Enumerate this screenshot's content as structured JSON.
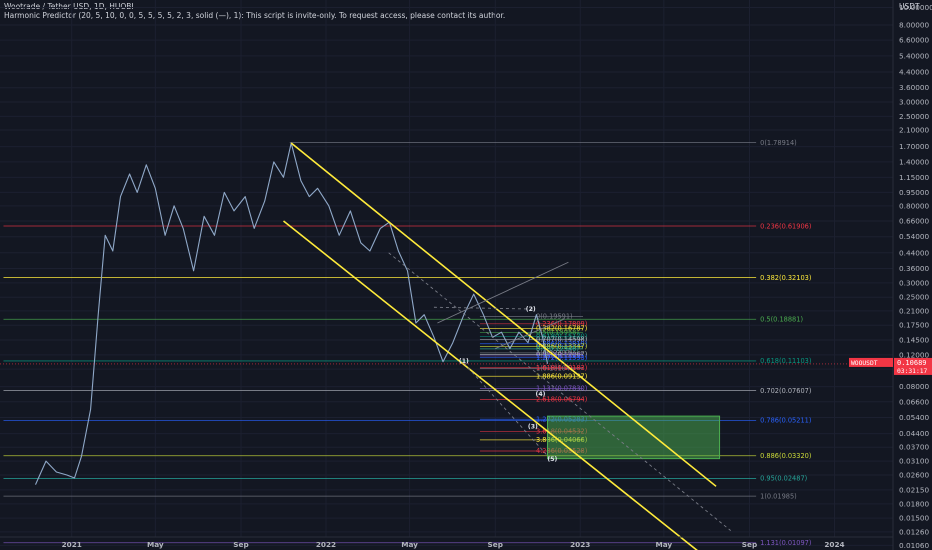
{
  "header": {
    "title": "Wootrade / Tether USD, 1D, HUOBI",
    "indicator": "Harmonic Predictor (20, 5, 10, 0, 0, 5, 5, 5, 5, 2, 3, solid (—), 1): This script is invite-only. To request access, please contact its author."
  },
  "chart_data": {
    "type": "line",
    "symbol": "WOOUSDT",
    "y_unit": "USDT",
    "y_scale": "log",
    "ylim": [
      0.01,
      11.0
    ],
    "y_ticks": [
      "10.00000",
      "8.00000",
      "6.60000",
      "5.40000",
      "4.40000",
      "3.60000",
      "3.00000",
      "2.50000",
      "2.10000",
      "1.70000",
      "1.40000",
      "1.15000",
      "0.95000",
      "0.80000",
      "0.66000",
      "0.54000",
      "0.44000",
      "0.36000",
      "0.30000",
      "0.25000",
      "0.21000",
      "0.17500",
      "0.14500",
      "0.12000",
      "0.10000",
      "0.08000",
      "0.06600",
      "0.05400",
      "0.04400",
      "0.03700",
      "0.03100",
      "0.02600",
      "0.02150",
      "0.01800",
      "0.01500",
      "0.01260",
      "0.01060"
    ],
    "y_tick_values": [
      10.0,
      8.0,
      6.6,
      5.4,
      4.4,
      3.6,
      3.0,
      2.5,
      2.1,
      1.7,
      1.4,
      1.15,
      0.95,
      0.8,
      0.66,
      0.54,
      0.44,
      0.36,
      0.3,
      0.25,
      0.21,
      0.175,
      0.145,
      0.12,
      0.1,
      0.08,
      0.066,
      0.054,
      0.044,
      0.037,
      0.031,
      0.026,
      0.0215,
      0.018,
      0.015,
      0.0126,
      0.0106
    ],
    "x_ticks": [
      "2021",
      "May",
      "Sep",
      "2022",
      "May",
      "Sep",
      "2023",
      "May",
      "Sep",
      "2024"
    ],
    "x_tick_dates": [
      "2021-01-01",
      "2021-05-01",
      "2021-09-01",
      "2022-01-01",
      "2022-05-01",
      "2022-09-01",
      "2023-01-01",
      "2023-05-01",
      "2023-09-01",
      "2024-01-01"
    ],
    "xlim": [
      "2020-09-20",
      "2024-03-25"
    ],
    "current_price": {
      "label": "WOOUSDT",
      "value": "0.10689",
      "countdown": "03:31:17"
    },
    "price_path": [
      {
        "date": "2020-11-10",
        "value": 0.023
      },
      {
        "date": "2020-11-25",
        "value": 0.031
      },
      {
        "date": "2020-12-10",
        "value": 0.027
      },
      {
        "date": "2020-12-25",
        "value": 0.026
      },
      {
        "date": "2021-01-05",
        "value": 0.025
      },
      {
        "date": "2021-01-15",
        "value": 0.033
      },
      {
        "date": "2021-01-28",
        "value": 0.06
      },
      {
        "date": "2021-02-08",
        "value": 0.2
      },
      {
        "date": "2021-02-18",
        "value": 0.55
      },
      {
        "date": "2021-03-01",
        "value": 0.45
      },
      {
        "date": "2021-03-12",
        "value": 0.9
      },
      {
        "date": "2021-03-25",
        "value": 1.2
      },
      {
        "date": "2021-04-05",
        "value": 0.95
      },
      {
        "date": "2021-04-18",
        "value": 1.35
      },
      {
        "date": "2021-05-01",
        "value": 1.0
      },
      {
        "date": "2021-05-15",
        "value": 0.55
      },
      {
        "date": "2021-05-28",
        "value": 0.8
      },
      {
        "date": "2021-06-10",
        "value": 0.6
      },
      {
        "date": "2021-06-25",
        "value": 0.35
      },
      {
        "date": "2021-07-10",
        "value": 0.7
      },
      {
        "date": "2021-07-25",
        "value": 0.55
      },
      {
        "date": "2021-08-08",
        "value": 0.95
      },
      {
        "date": "2021-08-22",
        "value": 0.75
      },
      {
        "date": "2021-09-07",
        "value": 0.9
      },
      {
        "date": "2021-09-20",
        "value": 0.6
      },
      {
        "date": "2021-10-05",
        "value": 0.85
      },
      {
        "date": "2021-10-18",
        "value": 1.4
      },
      {
        "date": "2021-11-01",
        "value": 1.15
      },
      {
        "date": "2021-11-12",
        "value": 1.78
      },
      {
        "date": "2021-11-26",
        "value": 1.1
      },
      {
        "date": "2021-12-08",
        "value": 0.9
      },
      {
        "date": "2021-12-20",
        "value": 1.0
      },
      {
        "date": "2022-01-05",
        "value": 0.8
      },
      {
        "date": "2022-01-20",
        "value": 0.55
      },
      {
        "date": "2022-02-05",
        "value": 0.75
      },
      {
        "date": "2022-02-20",
        "value": 0.5
      },
      {
        "date": "2022-03-05",
        "value": 0.45
      },
      {
        "date": "2022-03-20",
        "value": 0.6
      },
      {
        "date": "2022-04-02",
        "value": 0.65
      },
      {
        "date": "2022-04-15",
        "value": 0.45
      },
      {
        "date": "2022-04-28",
        "value": 0.35
      },
      {
        "date": "2022-05-10",
        "value": 0.18
      },
      {
        "date": "2022-05-22",
        "value": 0.2
      },
      {
        "date": "2022-06-05",
        "value": 0.15
      },
      {
        "date": "2022-06-18",
        "value": 0.11
      },
      {
        "date": "2022-07-02",
        "value": 0.14
      },
      {
        "date": "2022-07-18",
        "value": 0.2
      },
      {
        "date": "2022-08-01",
        "value": 0.26
      },
      {
        "date": "2022-08-15",
        "value": 0.2
      },
      {
        "date": "2022-08-28",
        "value": 0.15
      },
      {
        "date": "2022-09-10",
        "value": 0.16
      },
      {
        "date": "2022-09-22",
        "value": 0.13
      },
      {
        "date": "2022-10-05",
        "value": 0.16
      },
      {
        "date": "2022-10-18",
        "value": 0.14
      },
      {
        "date": "2022-10-30",
        "value": 0.2
      },
      {
        "date": "2022-11-08",
        "value": 0.15
      },
      {
        "date": "2022-11-15",
        "value": 0.107
      }
    ],
    "fib_levels": [
      {
        "label": "0(1.78914)",
        "value": 1.78914,
        "color": "#787b86",
        "start": "2021-11-10",
        "end": "2023-12-20"
      },
      {
        "label": "0.236(0.61906)",
        "value": 0.61906,
        "color": "#f23645",
        "start": "2020-09-25",
        "end": "2023-12-20"
      },
      {
        "label": "0.382(0.32103)",
        "value": 0.32103,
        "color": "#ffeb3b",
        "start": "2020-09-25",
        "end": "2023-12-20"
      },
      {
        "label": "0.5(0.18881)",
        "value": 0.18881,
        "color": "#4caf50",
        "start": "2020-09-25",
        "end": "2023-12-20"
      },
      {
        "label": "0.618(0.11103)",
        "value": 0.11103,
        "color": "#089981",
        "start": "2020-09-25",
        "end": "2023-12-20"
      },
      {
        "label": "0.702(0.07607)",
        "value": 0.07607,
        "color": "#b2b5be",
        "start": "2020-09-25",
        "end": "2023-12-20"
      },
      {
        "label": "0.786(0.05211)",
        "value": 0.05211,
        "color": "#2962ff",
        "start": "2020-09-25",
        "end": "2023-12-20"
      },
      {
        "label": "0.886(0.03320)",
        "value": 0.0332,
        "color": "#cddc39",
        "start": "2020-09-25",
        "end": "2023-12-20"
      },
      {
        "label": "0.95(0.02487)",
        "value": 0.02487,
        "color": "#26a69a",
        "start": "2020-09-25",
        "end": "2023-12-20"
      },
      {
        "label": "1(0.01985)",
        "value": 0.01985,
        "color": "#787b86",
        "start": "2020-09-25",
        "end": "2023-12-20"
      },
      {
        "label": "1.131(0.01097)",
        "value": 0.01097,
        "color": "#7e57c2",
        "start": "2020-09-25",
        "end": "2023-12-20"
      }
    ],
    "harmonic_levels": [
      {
        "label": "0(0.19591)",
        "value": 0.19591,
        "color": "#787b86"
      },
      {
        "label": "0.236(0.17809)",
        "value": 0.17809,
        "color": "#f23645"
      },
      {
        "label": "0.382(0.16787)",
        "value": 0.16787,
        "color": "#ffeb3b"
      },
      {
        "label": "0.5(0.15958)",
        "value": 0.15958,
        "color": "#4caf50"
      },
      {
        "label": "0.618(0.15170)",
        "value": 0.1517,
        "color": "#089981"
      },
      {
        "label": "0.707(0.14598)",
        "value": 0.14598,
        "color": "#b2b5be"
      },
      {
        "label": "0.786(0.13819)",
        "value": 0.13819,
        "color": "#2962ff"
      },
      {
        "label": "0.886(0.13347)",
        "value": 0.13347,
        "color": "#cddc39"
      },
      {
        "label": "0.9(0.12946)",
        "value": 0.12946,
        "color": "#26a69a"
      },
      {
        "label": "1(0.12307)",
        "value": 0.12307,
        "color": "#787b86"
      },
      {
        "label": "0.950(0.12067)",
        "value": 0.12067,
        "color": "#b2b5be"
      },
      {
        "label": "1.13(0.11837)",
        "value": 0.11837,
        "color": "#7e57c2"
      },
      {
        "label": "1.272(0.11593)",
        "value": 0.11593,
        "color": "#2962ff"
      },
      {
        "label": "1(0.10104)",
        "value": 0.10104,
        "color": "#787b86"
      },
      {
        "label": "1.618(0.10183)",
        "value": 0.10183,
        "color": "#f23645"
      },
      {
        "label": "1.886(0.09137)",
        "value": 0.09137,
        "color": "#ffeb3b"
      },
      {
        "label": "1.131(0.07830)",
        "value": 0.0783,
        "color": "#7e57c2"
      },
      {
        "label": "2.618(0.06794)",
        "value": 0.06794,
        "color": "#f23645"
      },
      {
        "label": "1.272(0.05283)",
        "value": 0.05283,
        "color": "#2962ff"
      },
      {
        "label": "3.618(0.04532)",
        "value": 0.04532,
        "color": "#f23645"
      },
      {
        "label": "3.886(0.04066)",
        "value": 0.04066,
        "color": "#ffeb3b"
      },
      {
        "label": "4.236(0.03528)",
        "value": 0.03528,
        "color": "#f23645"
      }
    ],
    "point_labels": [
      {
        "label": "(2)",
        "date": "2022-10-22",
        "value": 0.21
      },
      {
        "label": "(1)",
        "date": "2022-07-18",
        "value": 0.108
      },
      {
        "label": "(4)",
        "date": "2022-11-05",
        "value": 0.071
      },
      {
        "label": "(3)",
        "date": "2022-10-25",
        "value": 0.047
      },
      {
        "label": "(5)",
        "date": "2022-11-22",
        "value": 0.031
      }
    ],
    "target_zone": {
      "date_start": "2022-11-15",
      "date_end": "2023-07-20",
      "high": 0.055,
      "low": 0.032,
      "color": "#4caf50"
    },
    "trendlines": [
      {
        "color": "#ffeb3b",
        "from": {
          "date": "2021-11-12",
          "value": 1.78
        },
        "to": {
          "date": "2023-07-15",
          "value": 0.0225
        }
      },
      {
        "color": "#ffeb3b",
        "from": {
          "date": "2021-11-01",
          "value": 0.66
        },
        "to": {
          "date": "2023-06-20",
          "value": 0.0098
        }
      },
      {
        "color": "#787b86",
        "dashed": true,
        "from": {
          "date": "2022-04-01",
          "value": 0.44
        },
        "to": {
          "date": "2023-08-05",
          "value": 0.0128
        }
      },
      {
        "color": "#787b86",
        "from": {
          "date": "2022-06-10",
          "value": 0.18
        },
        "to": {
          "date": "2022-12-15",
          "value": 0.39
        }
      },
      {
        "color": "#787b86",
        "from": {
          "date": "2022-09-01",
          "value": 0.13
        },
        "to": {
          "date": "2022-12-10",
          "value": 0.19
        }
      },
      {
        "color": "#787b86",
        "dashed": true,
        "from": {
          "date": "2022-06-05",
          "value": 0.22
        },
        "to": {
          "date": "2022-10-25",
          "value": 0.215
        }
      },
      {
        "color": "#787b86",
        "dashed": true,
        "from": {
          "date": "2022-07-18",
          "value": 0.108
        },
        "to": {
          "date": "2022-11-22",
          "value": 0.031
        }
      }
    ]
  }
}
